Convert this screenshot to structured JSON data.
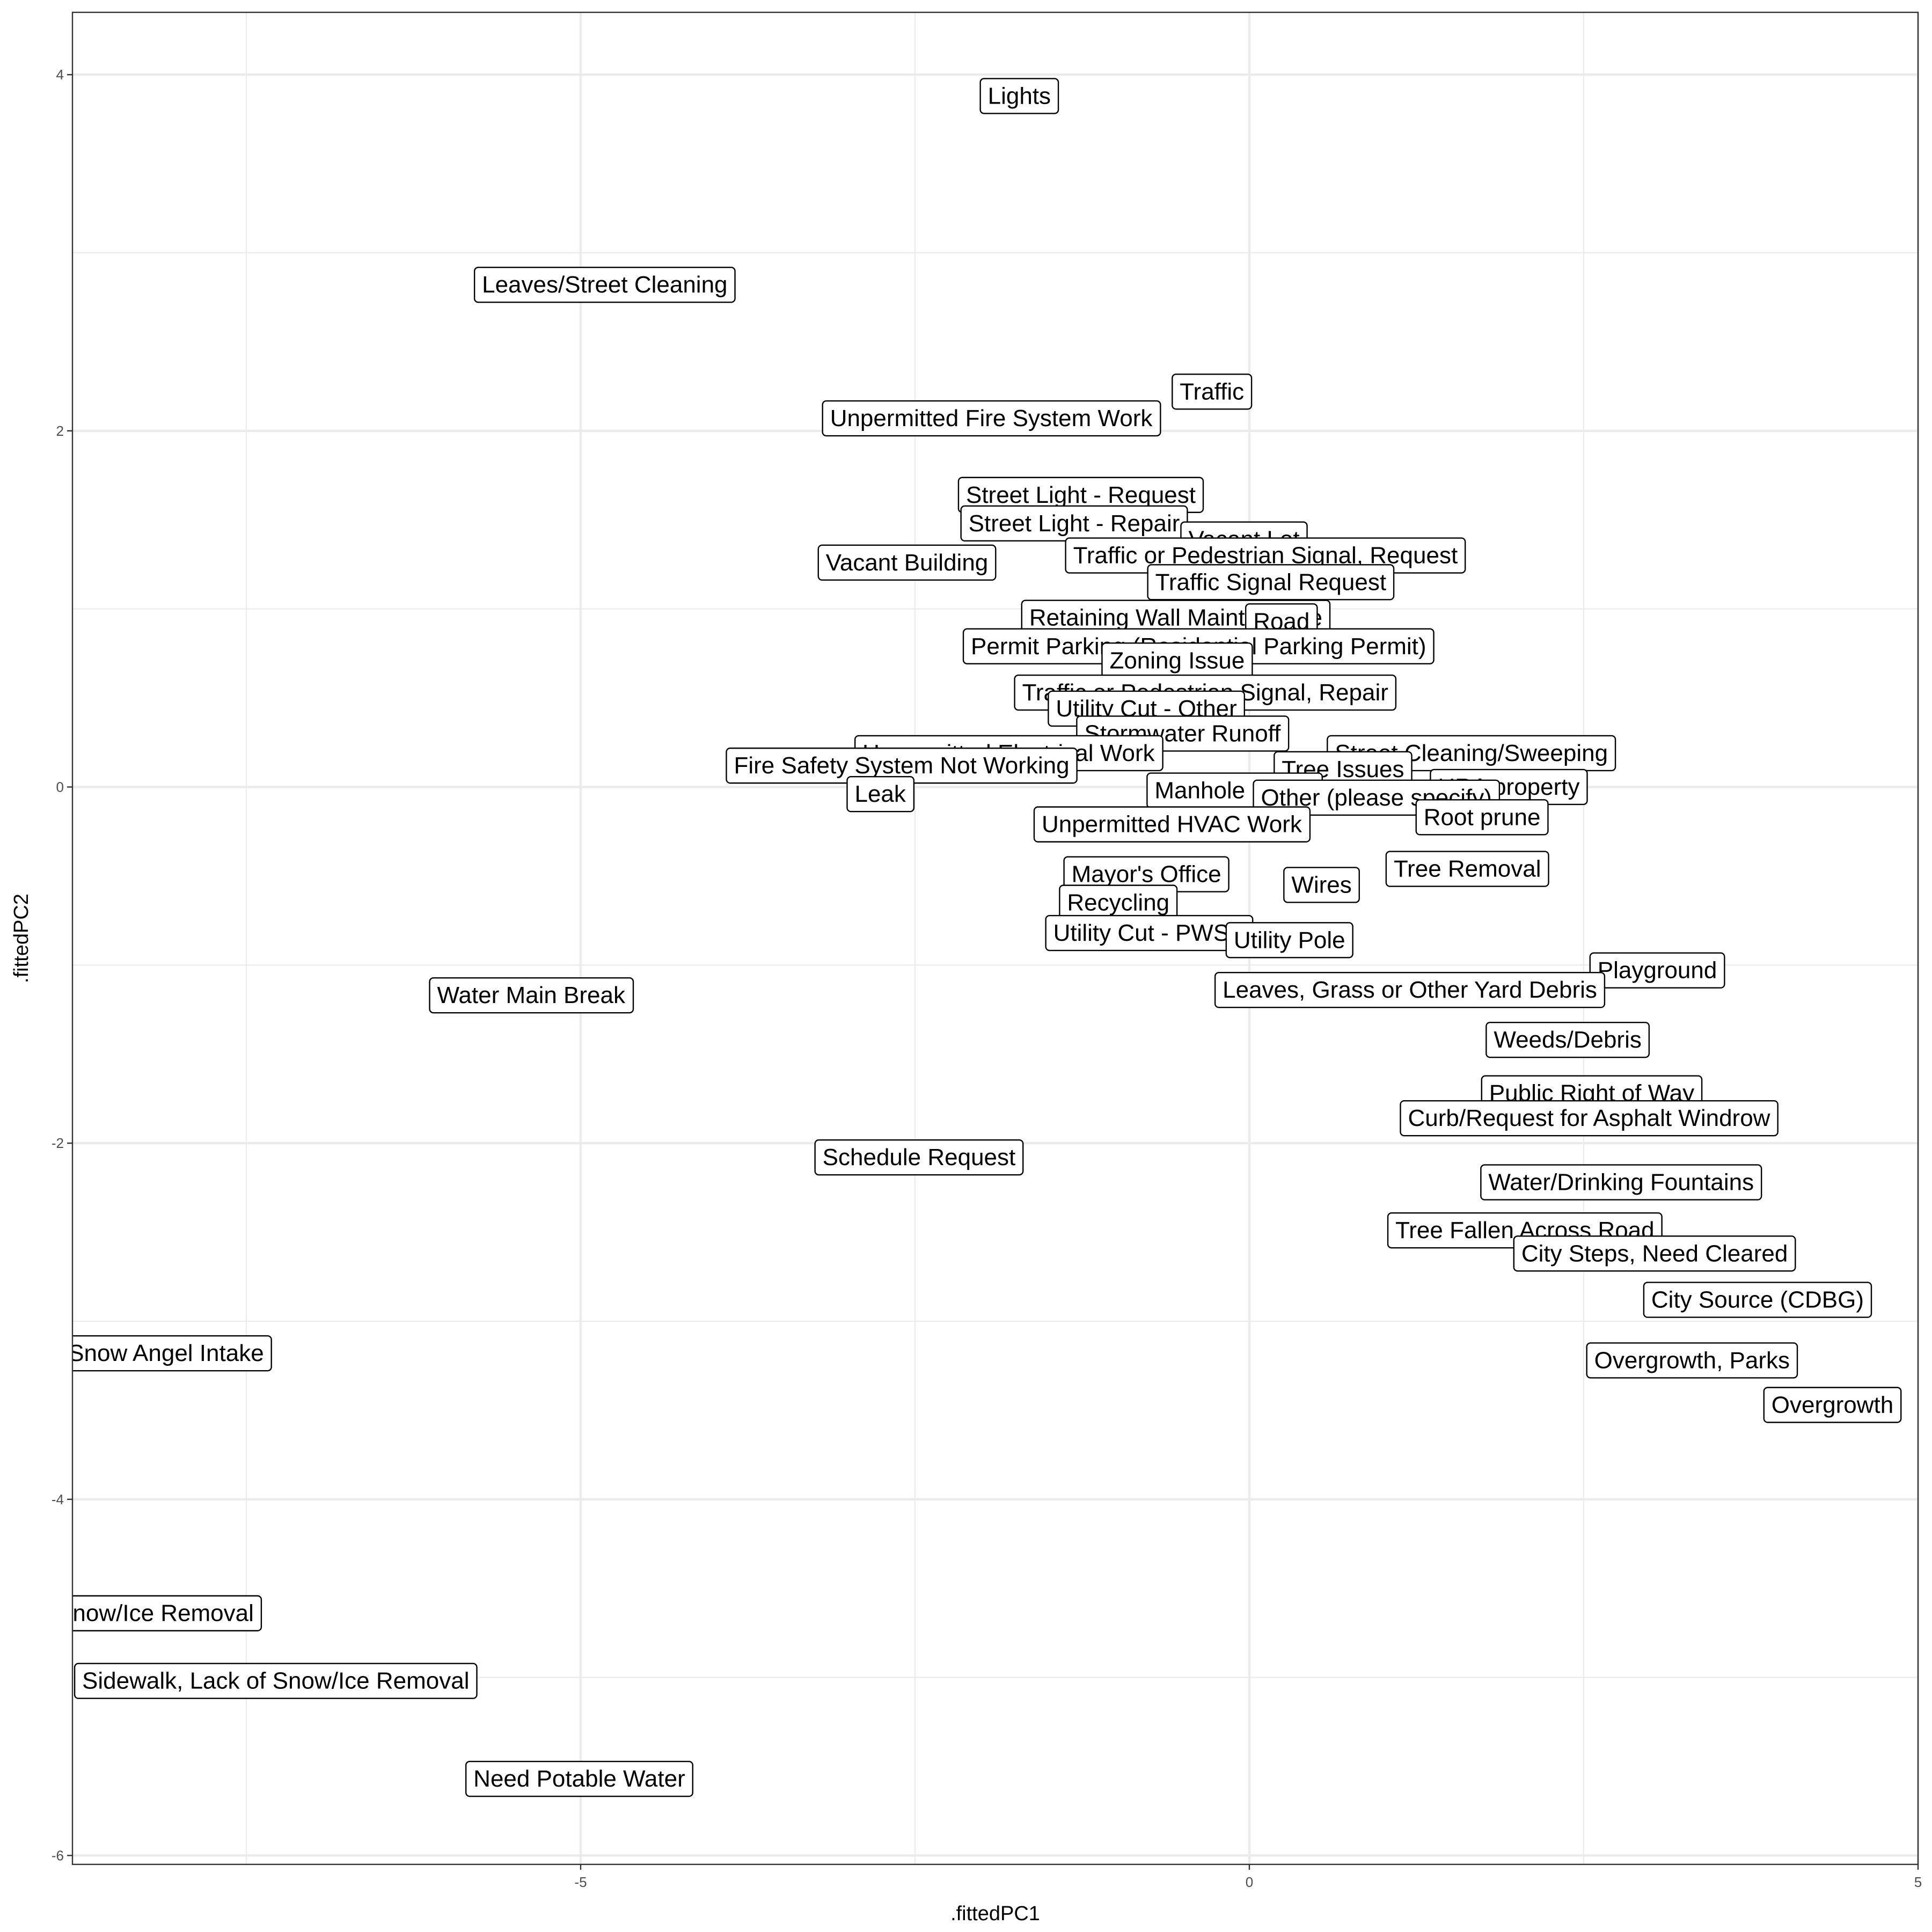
{
  "chart_data": {
    "type": "scatter",
    "xlabel": ".fittedPC1",
    "ylabel": ".fittedPC2",
    "xlim": [
      -8.8,
      5.0
    ],
    "ylim": [
      -6.05,
      4.35
    ],
    "x_ticks": [
      -5,
      0,
      5
    ],
    "y_ticks": [
      -6,
      -4,
      -2,
      0,
      2,
      4
    ],
    "x_tick_labels": [
      "-5",
      "0",
      "5"
    ],
    "y_tick_labels": [
      "-6",
      "-4",
      "-2",
      "0",
      "2",
      "4"
    ],
    "grid": true,
    "legend": "none",
    "colors": {
      "panel_border": "#333333",
      "grid": "#ebebeb",
      "label_box": "#ffffff",
      "label_text": "#000000"
    },
    "points": [
      {
        "label": "Lights",
        "x": -1.72,
        "y": 3.88
      },
      {
        "label": "Leaves/Street Cleaning",
        "x": -4.82,
        "y": 2.82
      },
      {
        "label": "Traffic",
        "x": -0.28,
        "y": 2.22
      },
      {
        "label": "Unpermitted Fire System Work",
        "x": -1.93,
        "y": 2.07
      },
      {
        "label": "Street Light - Request",
        "x": -1.26,
        "y": 1.64
      },
      {
        "label": "Street Light - Repair",
        "x": -1.31,
        "y": 1.48
      },
      {
        "label": "Vacant Lot",
        "x": -0.04,
        "y": 1.39
      },
      {
        "label": "Vacant Building",
        "x": -2.56,
        "y": 1.26
      },
      {
        "label": "Traffic or Pedestrian Signal, Request",
        "x": 0.12,
        "y": 1.3
      },
      {
        "label": "Traffic Signal Request",
        "x": 0.16,
        "y": 1.15
      },
      {
        "label": "Retaining Wall Maintenance",
        "x": -0.55,
        "y": 0.95
      },
      {
        "label": "Road",
        "x": 0.24,
        "y": 0.93
      },
      {
        "label": "Permit Parking (Residential Parking Permit)",
        "x": -0.38,
        "y": 0.79
      },
      {
        "label": "Zoning Issue",
        "x": -0.54,
        "y": 0.71
      },
      {
        "label": "Traffic or Pedestrian Signal, Repair",
        "x": -0.33,
        "y": 0.53
      },
      {
        "label": "Utility Cut - Other",
        "x": -0.77,
        "y": 0.44
      },
      {
        "label": "Stormwater Runoff",
        "x": -0.5,
        "y": 0.3
      },
      {
        "label": "Unpermitted Electrical Work",
        "x": -1.8,
        "y": 0.19
      },
      {
        "label": "Fire Safety System Not Working",
        "x": -2.6,
        "y": 0.12
      },
      {
        "label": "Leak",
        "x": -2.76,
        "y": -0.04
      },
      {
        "label": "Street Cleaning/Sweeping",
        "x": 1.66,
        "y": 0.19
      },
      {
        "label": "Tree Issues",
        "x": 0.7,
        "y": 0.1
      },
      {
        "label": "URA property",
        "x": 1.94,
        "y": 0.0
      },
      {
        "label": "Manhole Cover",
        "x": -0.11,
        "y": -0.02
      },
      {
        "label": "Other (please specify)",
        "x": 0.95,
        "y": -0.06
      },
      {
        "label": "Root prune",
        "x": 1.74,
        "y": -0.17
      },
      {
        "label": "Unpermitted HVAC Work",
        "x": -0.58,
        "y": -0.21
      },
      {
        "label": "Tree Removal",
        "x": 1.63,
        "y": -0.46
      },
      {
        "label": "Wires",
        "x": 0.54,
        "y": -0.55
      },
      {
        "label": "Mayor's Office",
        "x": -0.77,
        "y": -0.49
      },
      {
        "label": "Recycling",
        "x": -0.98,
        "y": -0.65
      },
      {
        "label": "Utility Cut - PWSA",
        "x": -0.75,
        "y": -0.82
      },
      {
        "label": "Utility Pole",
        "x": 0.3,
        "y": -0.86
      },
      {
        "label": "Playground",
        "x": 3.05,
        "y": -1.03
      },
      {
        "label": "Leaves, Grass or Other Yard Debris",
        "x": 1.2,
        "y": -1.14
      },
      {
        "label": "Weeds/Debris",
        "x": 2.38,
        "y": -1.42
      },
      {
        "label": "Public Right of Way",
        "x": 2.56,
        "y": -1.72
      },
      {
        "label": "Curb/Request for Asphalt Windrow",
        "x": 2.54,
        "y": -1.86
      },
      {
        "label": "Schedule Request",
        "x": -2.47,
        "y": -2.08
      },
      {
        "label": "Water/Drinking Fountains",
        "x": 2.78,
        "y": -2.22
      },
      {
        "label": "Tree Fallen Across Road",
        "x": 2.06,
        "y": -2.49
      },
      {
        "label": "City Steps, Need Cleared",
        "x": 3.03,
        "y": -2.62
      },
      {
        "label": "City Source (CDBG)",
        "x": 3.8,
        "y": -2.88
      },
      {
        "label": "Overgrowth, Parks",
        "x": 3.31,
        "y": -3.22
      },
      {
        "label": "Overgrowth",
        "x": 4.36,
        "y": -3.47
      },
      {
        "label": "Water Main Break",
        "x": -5.37,
        "y": -1.17
      },
      {
        "label": "Snow Angel Intake",
        "x": -8.1,
        "y": -3.18
      },
      {
        "label": "Snow/Ice Removal",
        "x": -8.18,
        "y": -4.64
      },
      {
        "label": "Sidewalk, Lack of Snow/Ice Removal",
        "x": -7.28,
        "y": -5.02
      },
      {
        "label": "Need Potable Water",
        "x": -5.01,
        "y": -5.57
      }
    ]
  }
}
